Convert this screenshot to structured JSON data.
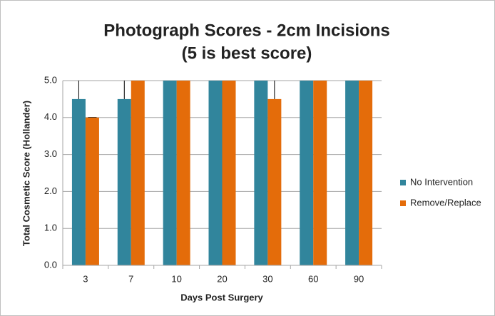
{
  "chart_data": {
    "type": "bar",
    "title": [
      "Photograph Scores - 2cm Incisions",
      "(5 is best score)"
    ],
    "x_label": "Days Post Surgery",
    "y_label": "Total Cosmetic Score (Hollander)",
    "categories": [
      "3",
      "7",
      "10",
      "20",
      "30",
      "60",
      "90"
    ],
    "series": [
      {
        "name": "No Intervention",
        "color": "#31859c",
        "values": [
          4.5,
          4.5,
          5,
          5,
          5,
          5,
          5
        ],
        "errors": [
          0.7,
          0.7,
          0,
          0,
          0,
          0,
          0
        ]
      },
      {
        "name": "Remove/Replace",
        "color": "#e46c0a",
        "values": [
          4,
          5,
          5,
          5,
          4.5,
          5,
          5
        ],
        "errors": [
          0,
          0,
          0,
          0,
          0.7,
          0,
          0
        ]
      }
    ],
    "ylim": [
      0,
      5
    ],
    "yticks": [
      {
        "value": 0,
        "label": "0.0"
      },
      {
        "value": 1,
        "label": "1.0"
      },
      {
        "value": 2,
        "label": "2.0"
      },
      {
        "value": 3,
        "label": "3.0"
      },
      {
        "value": 4,
        "label": "4.0"
      },
      {
        "value": 5,
        "label": "5.0"
      }
    ],
    "grid": true,
    "legend": "right"
  }
}
